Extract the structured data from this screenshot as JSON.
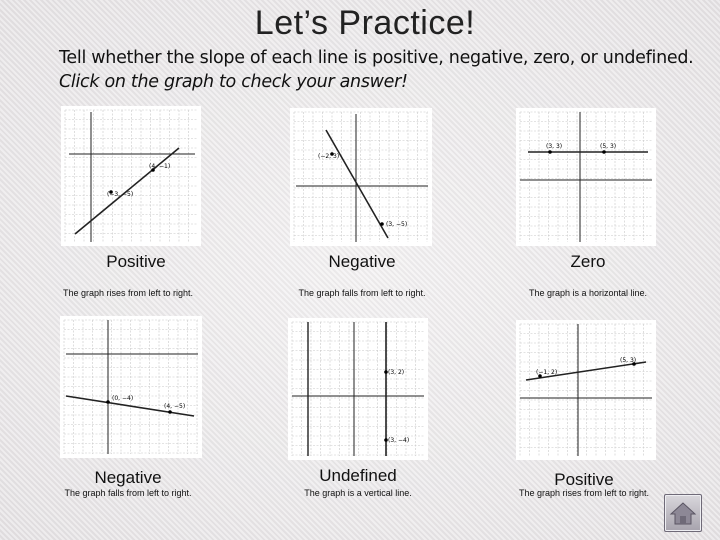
{
  "title": "Let’s Practice!",
  "instructions": "Tell whether the slope of each line is positive, negative, zero, or undefined.",
  "instructions_italic": "Click on the graph to check your answer!",
  "graphs": [
    {
      "answer": "Positive",
      "explanation": "The graph rises from left to right.",
      "point_labels": [
        "(4, −1)",
        "(−3, −5)"
      ]
    },
    {
      "answer": "Negative",
      "explanation": "The graph falls from left to right.",
      "point_labels": [
        "(−2, 3)",
        "(3, −5)"
      ]
    },
    {
      "answer": "Zero",
      "explanation": "The graph is a horizontal line.",
      "point_labels": [
        "(3, 3)",
        "(5, 3)"
      ]
    },
    {
      "answer": "Negative",
      "explanation": "The graph falls from left to right.",
      "point_labels": [
        "(0, −4)",
        "(4, −5)"
      ]
    },
    {
      "answer": "Undefined",
      "explanation": "The graph is a vertical line.",
      "point_labels": [
        "(3, 2)",
        "(3, −4)"
      ]
    },
    {
      "answer": "Positive",
      "explanation": "The graph rises from left to right.",
      "point_labels": [
        "(−1, 2)",
        "(5, 3)"
      ]
    }
  ],
  "icons": {
    "home_button": "home-icon"
  }
}
